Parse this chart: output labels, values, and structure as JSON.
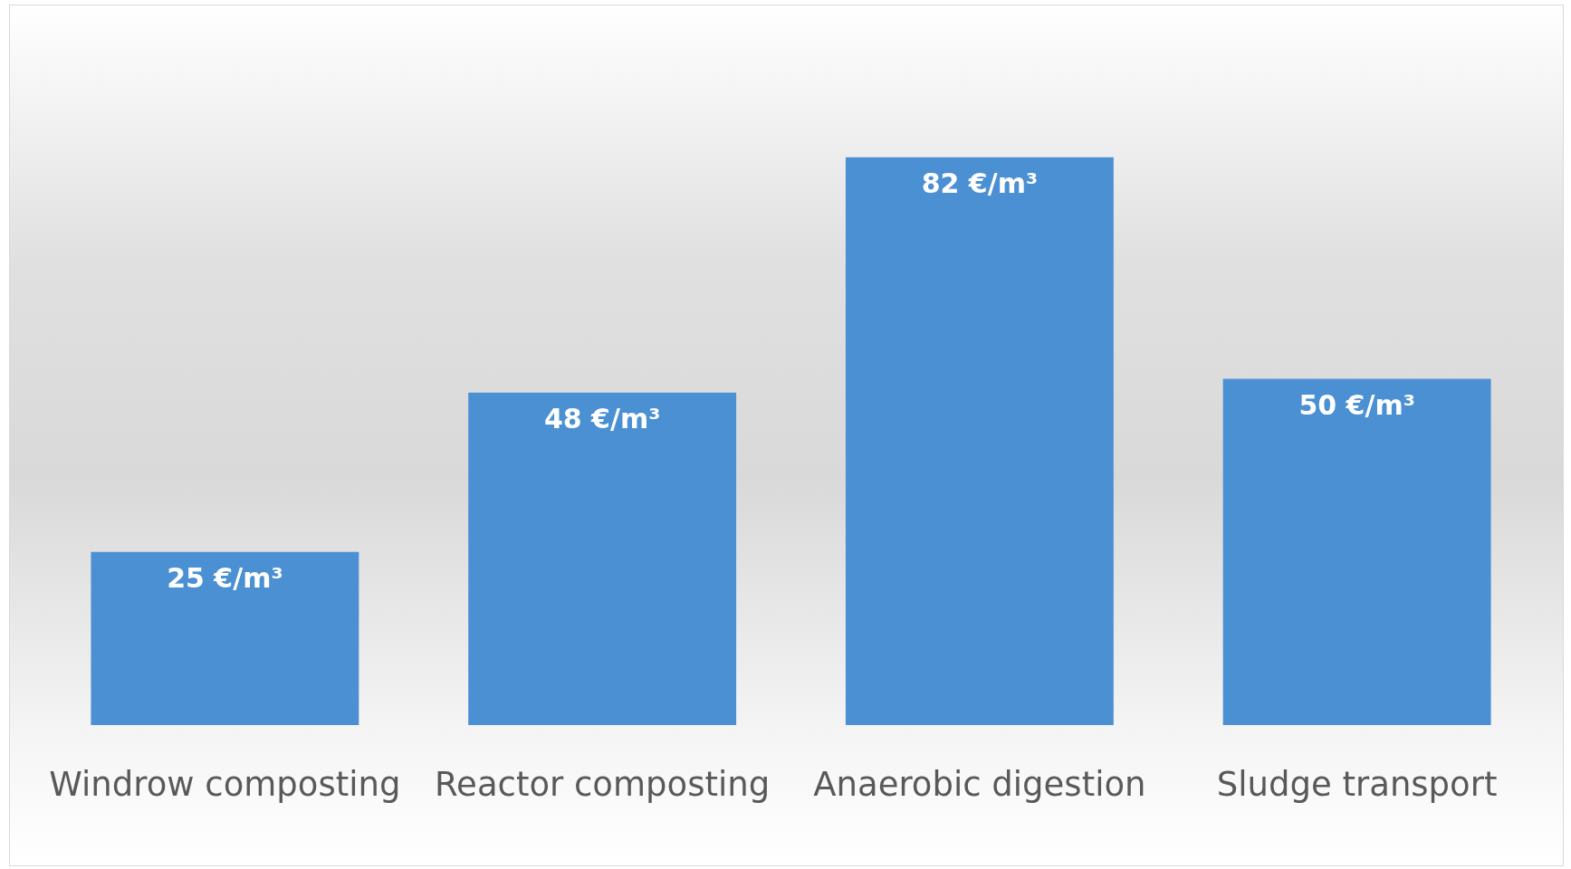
{
  "chart_data": {
    "type": "bar",
    "categories": [
      "Windrow composting",
      "Reactor composting",
      "Anaerobic digestion",
      "Sludge transport"
    ],
    "values": [
      25,
      48,
      82,
      50
    ],
    "value_labels": [
      "25 €/m³",
      "48 €/m³",
      "82 €/m³",
      "50 €/m³"
    ],
    "color": "#4a90d3"
  }
}
